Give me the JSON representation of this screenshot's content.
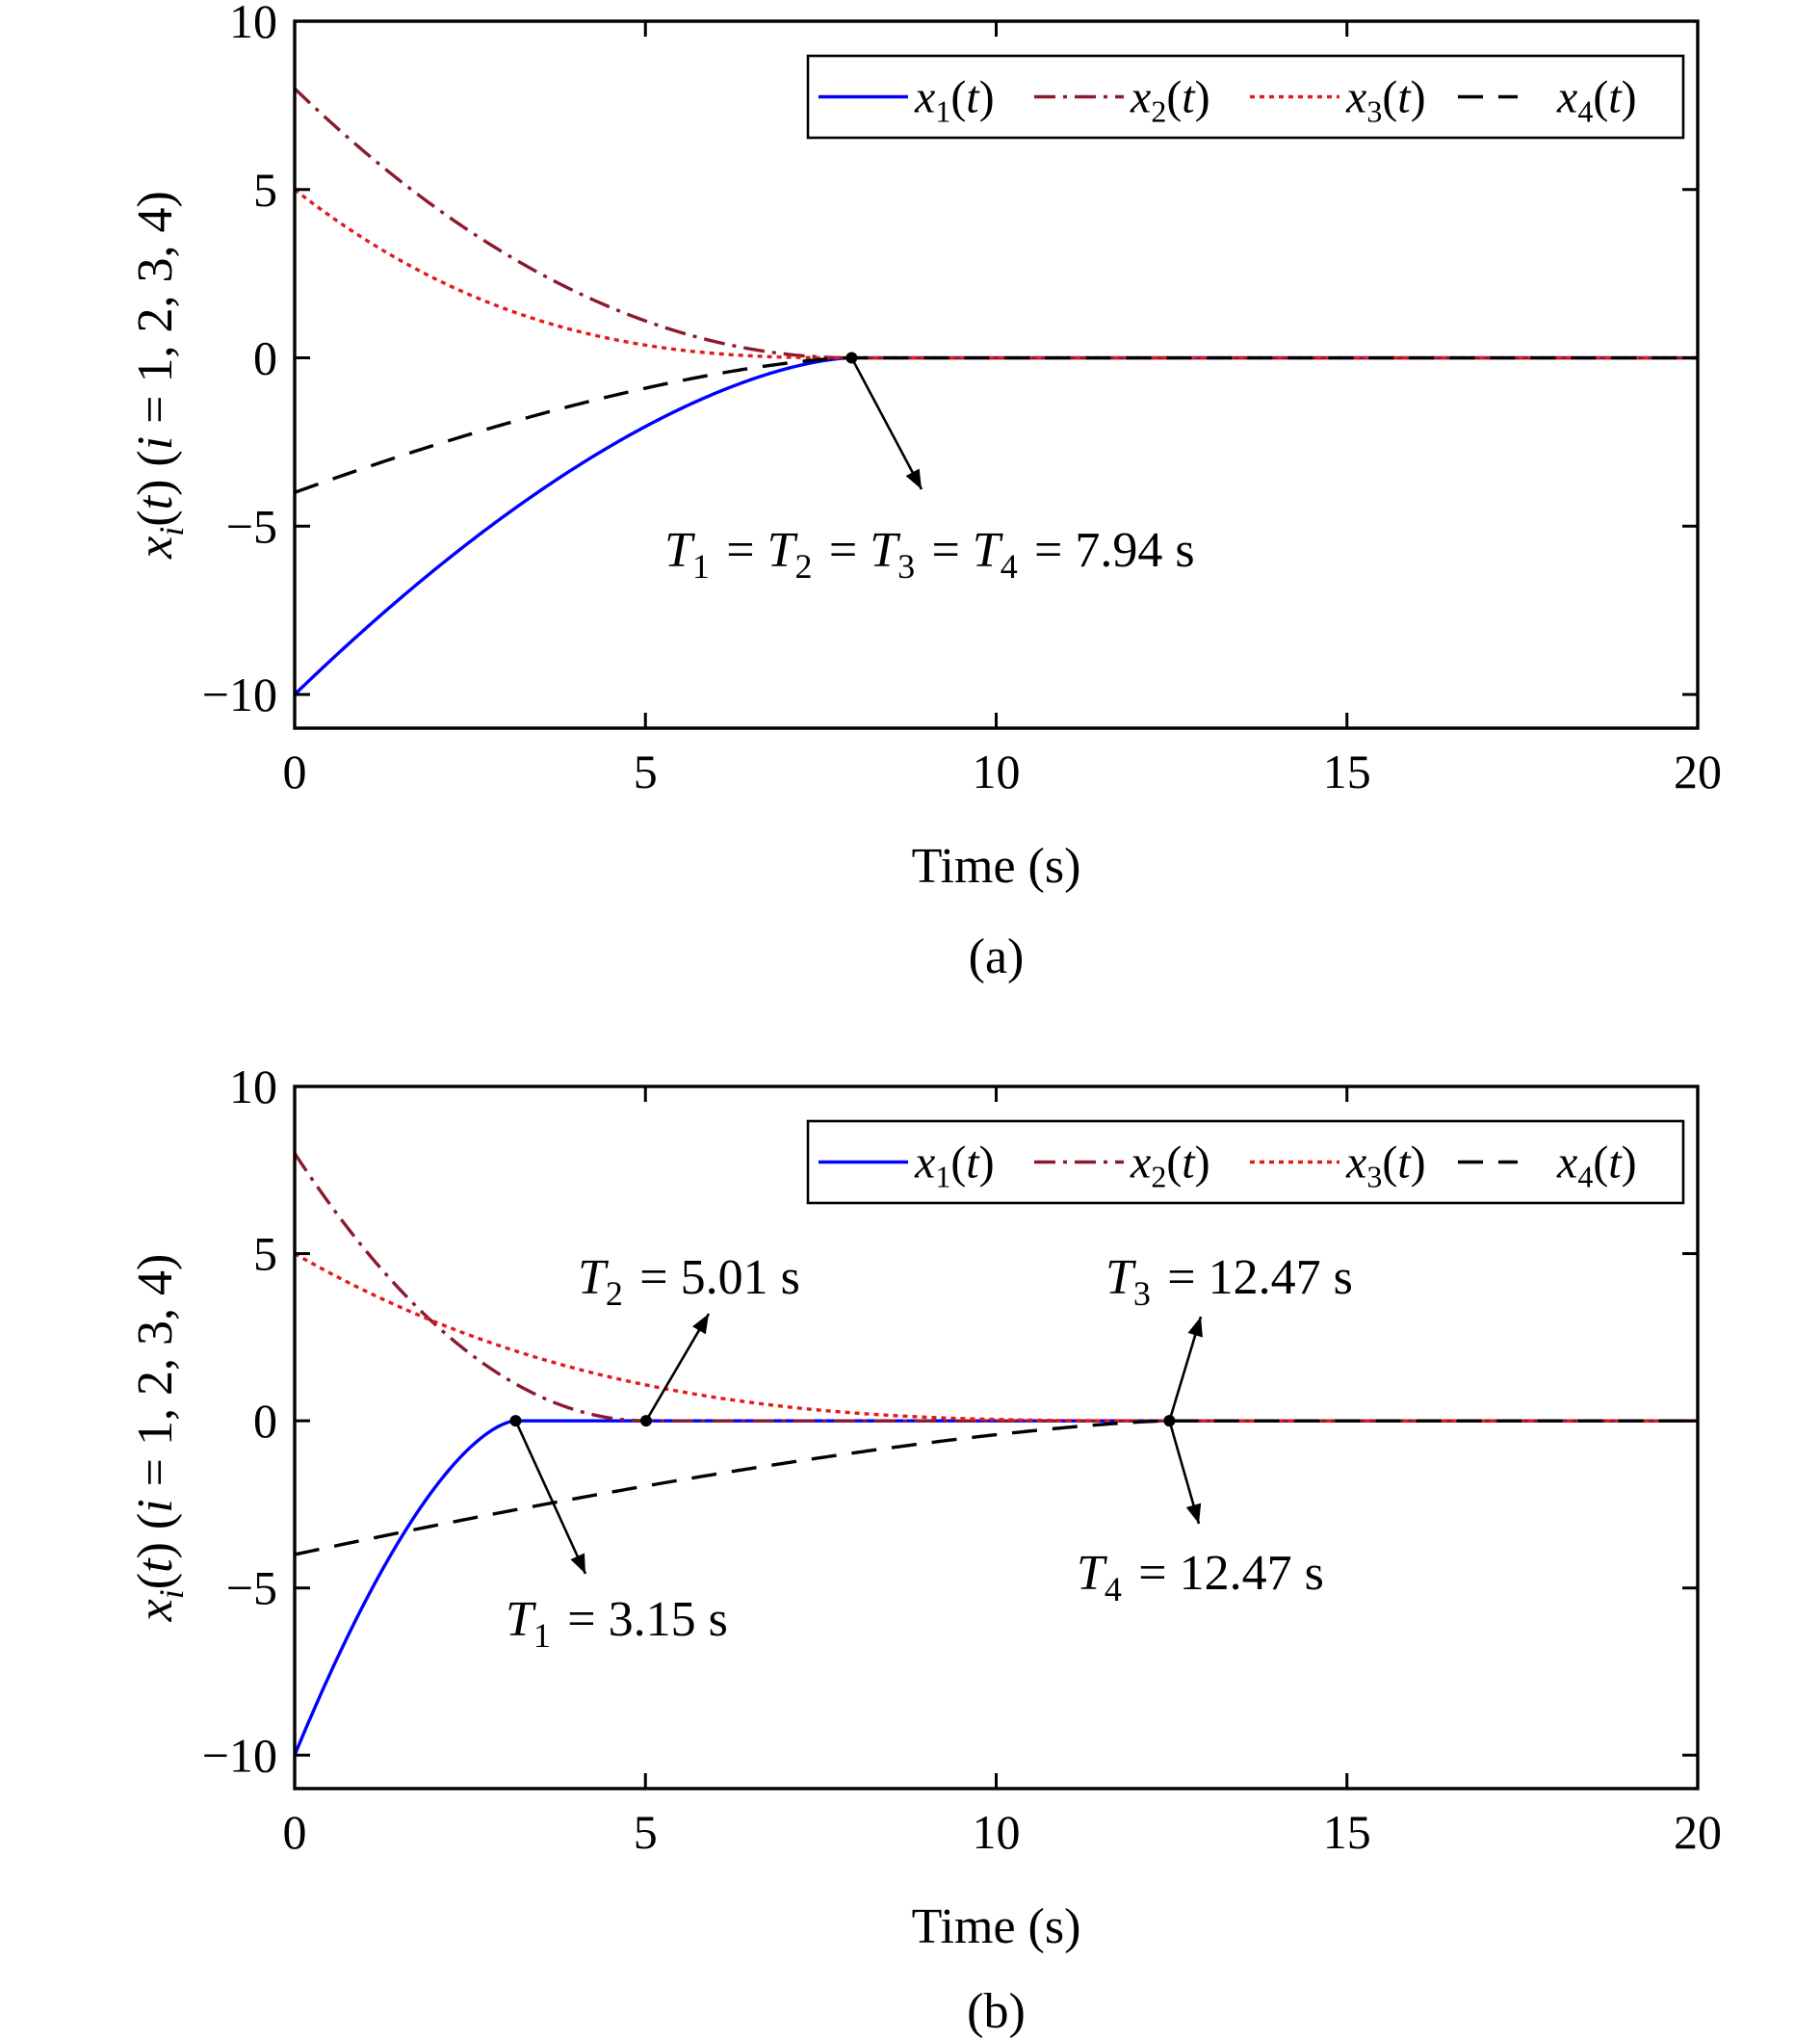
{
  "figure": {
    "panels": [
      {
        "caption": "(a)",
        "annotations": [
          {
            "var": "T",
            "subs": [
              "1",
              "2",
              "3",
              "4"
            ],
            "value": "= 7.94 s",
            "point": [
              7.94,
              0
            ],
            "pos": "below-right"
          }
        ]
      },
      {
        "caption": "(b)",
        "annotations": [
          {
            "var": "T",
            "subs": [
              "1"
            ],
            "value": "= 3.15 s",
            "point": [
              3.15,
              0
            ],
            "pos": "below-right"
          },
          {
            "var": "T",
            "subs": [
              "2"
            ],
            "value": "= 5.01 s",
            "point": [
              5.01,
              0
            ],
            "pos": "above-right"
          },
          {
            "var": "T",
            "subs": [
              "3"
            ],
            "value": "= 12.47 s",
            "point": [
              12.47,
              0
            ],
            "pos": "above-right"
          },
          {
            "var": "T",
            "subs": [
              "4"
            ],
            "value": "= 12.47 s",
            "point": [
              12.47,
              0
            ],
            "pos": "below-right"
          }
        ]
      }
    ]
  },
  "chart_data": [
    {
      "type": "line",
      "title": "",
      "xlabel": "Time (s)",
      "ylabel": "x_i(t) (i = 1, 2, 3, 4)",
      "xlim": [
        0,
        20
      ],
      "ylim": [
        -11,
        10
      ],
      "xticks": [
        0,
        5,
        10,
        15,
        20
      ],
      "yticks": [
        -10,
        -5,
        0,
        5,
        10
      ],
      "ytick_labels": [
        "−10",
        "−5",
        "0",
        "5",
        "10"
      ],
      "legend": "top-right",
      "series": [
        {
          "name": "x1(t)",
          "sub": "1",
          "x0": -10,
          "T": 7.94,
          "p": 1.6,
          "color": "#0000ff",
          "dash": ""
        },
        {
          "name": "x2(t)",
          "sub": "2",
          "x0": 8,
          "T": 7.94,
          "p": 2.0,
          "color": "#8b1a2e",
          "dash": "22,8,4,8"
        },
        {
          "name": "x3(t)",
          "sub": "3",
          "x0": 5,
          "T": 7.94,
          "p": 2.6,
          "color": "#e31a1c",
          "dash": "5,5"
        },
        {
          "name": "x4(t)",
          "sub": "4",
          "x0": -4,
          "T": 7.94,
          "p": 1.5,
          "color": "#000000",
          "dash": "26,16"
        }
      ]
    },
    {
      "type": "line",
      "title": "",
      "xlabel": "Time (s)",
      "ylabel": "x_i(t) (i = 1, 2, 3, 4)",
      "xlim": [
        0,
        20
      ],
      "ylim": [
        -11,
        10
      ],
      "xticks": [
        0,
        5,
        10,
        15,
        20
      ],
      "yticks": [
        -10,
        -5,
        0,
        5,
        10
      ],
      "ytick_labels": [
        "−10",
        "−5",
        "0",
        "5",
        "10"
      ],
      "legend": "top-right",
      "series": [
        {
          "name": "x1(t)",
          "sub": "1",
          "x0": -10,
          "T": 3.15,
          "p": 1.6,
          "color": "#0000ff",
          "dash": ""
        },
        {
          "name": "x2(t)",
          "sub": "2",
          "x0": 8,
          "T": 5.01,
          "p": 2.0,
          "color": "#8b1a2e",
          "dash": "22,8,4,8"
        },
        {
          "name": "x3(t)",
          "sub": "3",
          "x0": 5,
          "T": 12.47,
          "p": 3.0,
          "color": "#e31a1c",
          "dash": "5,5"
        },
        {
          "name": "x4(t)",
          "sub": "4",
          "x0": -4,
          "T": 12.47,
          "p": 1.4,
          "color": "#000000",
          "dash": "26,16"
        }
      ]
    }
  ]
}
